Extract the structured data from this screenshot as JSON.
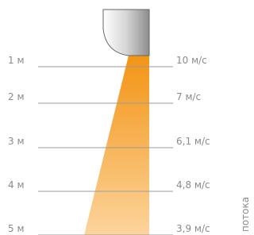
{
  "rows": [
    {
      "distance": "1 м",
      "speed": "10 м/с"
    },
    {
      "distance": "2 м",
      "speed": "7 м/с"
    },
    {
      "distance": "3 м",
      "speed": "6,1 м/с"
    },
    {
      "distance": "4 м",
      "speed": "4,8 м/с"
    },
    {
      "distance": "5 м",
      "speed": "3,9 м/с"
    }
  ],
  "axis_label": "потока"
}
